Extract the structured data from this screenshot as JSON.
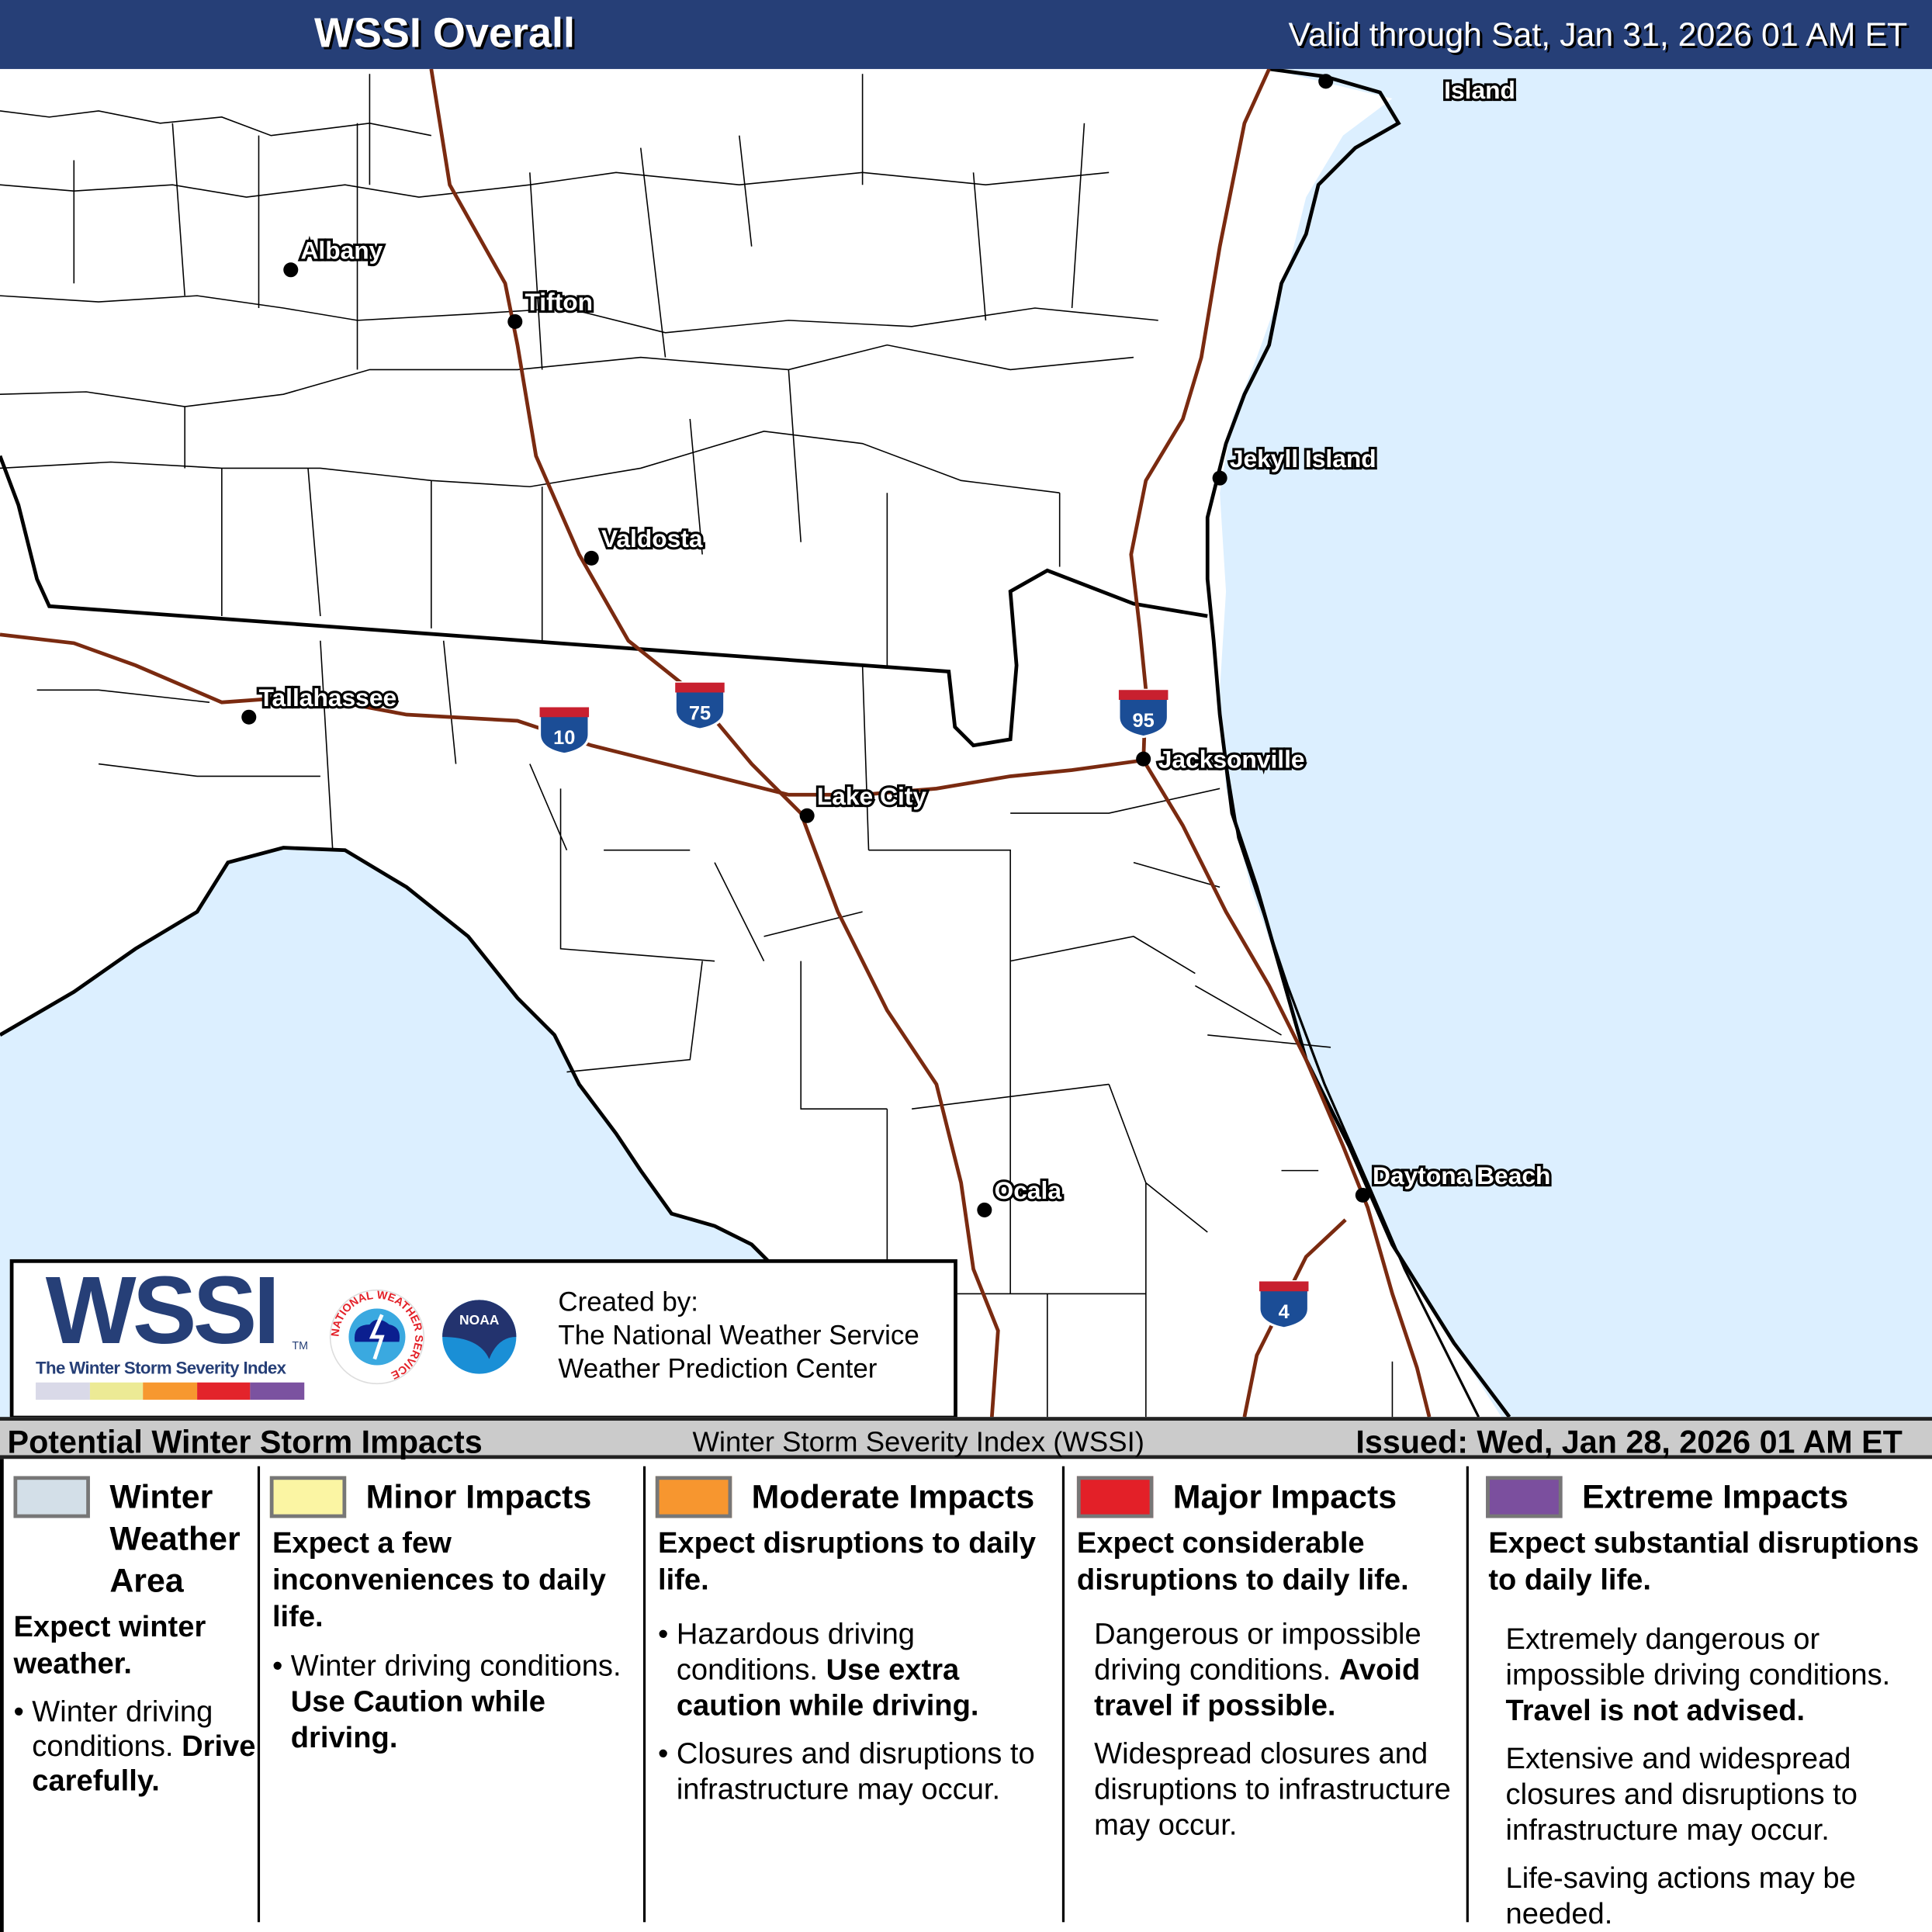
{
  "header": {
    "title": "WSSI Overall",
    "valid": "Valid through Sat, Jan 31, 2026 01 AM ET"
  },
  "map": {
    "colors": {
      "water": "#dcefff",
      "land": "#ffffff",
      "interstate": "#7a2a10",
      "boundary": "#000000"
    },
    "cities": [
      "Albany",
      "Tifton",
      "Valdosta",
      "Tallahassee",
      "Lake City",
      "Jacksonville",
      "Jekyll Island",
      "Ocala",
      "Daytona Beach",
      "Island"
    ],
    "interstates": [
      "10",
      "75",
      "95",
      "4"
    ]
  },
  "logo": {
    "wssi": "WSSI",
    "tm": "TM",
    "subtitle": "The Winter Storm Severity Index",
    "nws_ring": "NATIONAL WEATHER SERVICE",
    "noaa": "NOAA",
    "created_by": "Created by:",
    "org1": "The National Weather Service",
    "org2": "Weather Prediction Center",
    "scale_colors": [
      "#d9d9e8",
      "#ecea95",
      "#f7982f",
      "#e3242b",
      "#7b52a0"
    ]
  },
  "bar": {
    "left": "Potential Winter Storm Impacts",
    "center": "Winter Storm Severity Index (WSSI)",
    "right": "Issued: Wed, Jan 28, 2026 01 AM ET"
  },
  "legend": [
    {
      "color": "#d3dfe8",
      "title": [
        "Winter",
        "Weather",
        "Area"
      ],
      "headline": "Expect winter weather.",
      "items": [
        {
          "text": "Winter driving conditions.",
          "bold": "Drive carefully."
        }
      ]
    },
    {
      "color": "#fbf5a3",
      "title": [
        "Minor Impacts"
      ],
      "headline": "Expect a few inconveniences to daily life.",
      "items": [
        {
          "text": "Winter driving conditions.",
          "bold": "Use Caution while driving."
        }
      ]
    },
    {
      "color": "#f7962f",
      "title": [
        "Moderate Impacts"
      ],
      "headline": "Expect disruptions to daily life.",
      "items": [
        {
          "text": "Hazardous driving conditions.",
          "bold": "Use extra caution while driving."
        },
        {
          "text": "Closures and disruptions to infrastructure may occur."
        }
      ]
    },
    {
      "color": "#e32028",
      "title": [
        "Major Impacts"
      ],
      "headline": "Expect considerable disruptions to daily life.",
      "items": [
        {
          "text": "Dangerous or impossible driving conditions.",
          "bold": "Avoid travel if possible."
        },
        {
          "text": "Widespread closures and disruptions to infrastructure may occur."
        }
      ]
    },
    {
      "color": "#7b4f9e",
      "title": [
        "Extreme Impacts"
      ],
      "headline": "Expect substantial disruptions to daily life.",
      "items": [
        {
          "text": "Extremely dangerous or impossible driving conditions.",
          "bold": "Travel is not advised."
        },
        {
          "text": "Extensive and widespread closures and disruptions to infrastructure may occur."
        },
        {
          "text": "Life-saving actions may be needed."
        }
      ]
    }
  ]
}
